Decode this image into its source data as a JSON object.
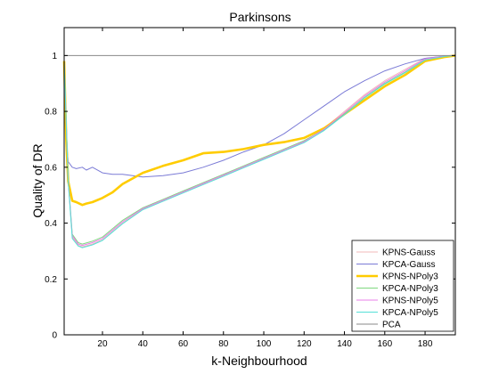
{
  "chart_data": {
    "type": "line",
    "title": "Parkinsons",
    "xlabel": "k-Neighbourhood",
    "ylabel": "Quality of DR",
    "xlim": [
      1,
      195
    ],
    "ylim": [
      0,
      1.1
    ],
    "xticks": [
      20,
      40,
      60,
      80,
      100,
      120,
      140,
      160,
      180
    ],
    "yticks": [
      0,
      0.2,
      0.4,
      0.6,
      0.8,
      1
    ],
    "grid": false,
    "legend_position": "bottom-right",
    "series": [
      {
        "name": "KPNS-Gauss",
        "color": "#f2b8b8",
        "width": 1,
        "x": [
          1,
          3,
          5,
          8,
          10,
          15,
          20,
          30,
          40,
          50,
          60,
          70,
          80,
          90,
          100,
          110,
          120,
          130,
          140,
          150,
          160,
          170,
          180,
          190,
          195
        ],
        "y": [
          0.98,
          0.55,
          0.35,
          0.32,
          0.315,
          0.325,
          0.34,
          0.4,
          0.45,
          0.48,
          0.51,
          0.54,
          0.57,
          0.6,
          0.63,
          0.66,
          0.69,
          0.74,
          0.8,
          0.86,
          0.91,
          0.95,
          0.99,
          0.998,
          1.0
        ]
      },
      {
        "name": "KPCA-Gauss",
        "color": "#7b7bd6",
        "width": 1,
        "x": [
          1,
          2,
          3,
          5,
          7,
          10,
          12,
          15,
          20,
          25,
          30,
          35,
          40,
          50,
          60,
          70,
          80,
          90,
          100,
          110,
          120,
          130,
          140,
          150,
          160,
          170,
          180,
          190,
          195
        ],
        "y": [
          0.98,
          0.7,
          0.62,
          0.6,
          0.595,
          0.6,
          0.59,
          0.6,
          0.58,
          0.575,
          0.575,
          0.57,
          0.565,
          0.57,
          0.58,
          0.6,
          0.625,
          0.655,
          0.68,
          0.72,
          0.77,
          0.82,
          0.87,
          0.91,
          0.945,
          0.97,
          0.99,
          0.998,
          1.0
        ]
      },
      {
        "name": "KPNS-NPoly3",
        "color": "#ffcc00",
        "width": 2.6,
        "x": [
          1,
          2,
          3,
          5,
          7,
          10,
          12,
          15,
          20,
          25,
          30,
          35,
          40,
          50,
          60,
          70,
          80,
          90,
          100,
          110,
          120,
          130,
          140,
          150,
          160,
          170,
          180,
          190,
          195
        ],
        "y": [
          0.98,
          0.7,
          0.55,
          0.48,
          0.475,
          0.465,
          0.47,
          0.475,
          0.49,
          0.51,
          0.54,
          0.56,
          0.58,
          0.605,
          0.625,
          0.65,
          0.655,
          0.665,
          0.68,
          0.69,
          0.705,
          0.74,
          0.79,
          0.84,
          0.89,
          0.93,
          0.98,
          0.995,
          1.0
        ]
      },
      {
        "name": "KPCA-NPoly3",
        "color": "#7fd87f",
        "width": 1,
        "x": [
          1,
          3,
          5,
          8,
          10,
          15,
          20,
          30,
          40,
          50,
          60,
          70,
          80,
          90,
          100,
          110,
          120,
          130,
          140,
          150,
          160,
          170,
          180,
          190,
          195
        ],
        "y": [
          0.98,
          0.56,
          0.36,
          0.33,
          0.325,
          0.335,
          0.35,
          0.41,
          0.455,
          0.485,
          0.515,
          0.545,
          0.575,
          0.605,
          0.635,
          0.665,
          0.695,
          0.735,
          0.79,
          0.85,
          0.9,
          0.94,
          0.985,
          0.997,
          1.0
        ]
      },
      {
        "name": "KPNS-NPoly5",
        "color": "#e87fe8",
        "width": 1,
        "x": [
          1,
          3,
          5,
          8,
          10,
          15,
          20,
          30,
          40,
          50,
          60,
          70,
          80,
          90,
          100,
          110,
          120,
          130,
          140,
          150,
          160,
          170,
          180,
          190,
          195
        ],
        "y": [
          0.98,
          0.555,
          0.355,
          0.325,
          0.32,
          0.33,
          0.345,
          0.405,
          0.452,
          0.482,
          0.512,
          0.542,
          0.572,
          0.602,
          0.632,
          0.662,
          0.692,
          0.737,
          0.795,
          0.855,
          0.905,
          0.945,
          0.988,
          0.998,
          1.0
        ]
      },
      {
        "name": "KPCA-NPoly5",
        "color": "#55e0d8",
        "width": 1,
        "x": [
          1,
          3,
          5,
          8,
          10,
          15,
          20,
          30,
          40,
          50,
          60,
          70,
          80,
          90,
          100,
          110,
          120,
          130,
          140,
          150,
          160,
          170,
          180,
          190,
          195
        ],
        "y": [
          0.98,
          0.55,
          0.345,
          0.318,
          0.312,
          0.322,
          0.338,
          0.398,
          0.448,
          0.478,
          0.508,
          0.538,
          0.568,
          0.598,
          0.628,
          0.658,
          0.688,
          0.732,
          0.788,
          0.848,
          0.898,
          0.938,
          0.984,
          0.997,
          1.0
        ]
      },
      {
        "name": "PCA",
        "color": "#888888",
        "width": 1,
        "x": [
          1,
          195
        ],
        "y": [
          1.0,
          1.0
        ]
      }
    ]
  }
}
